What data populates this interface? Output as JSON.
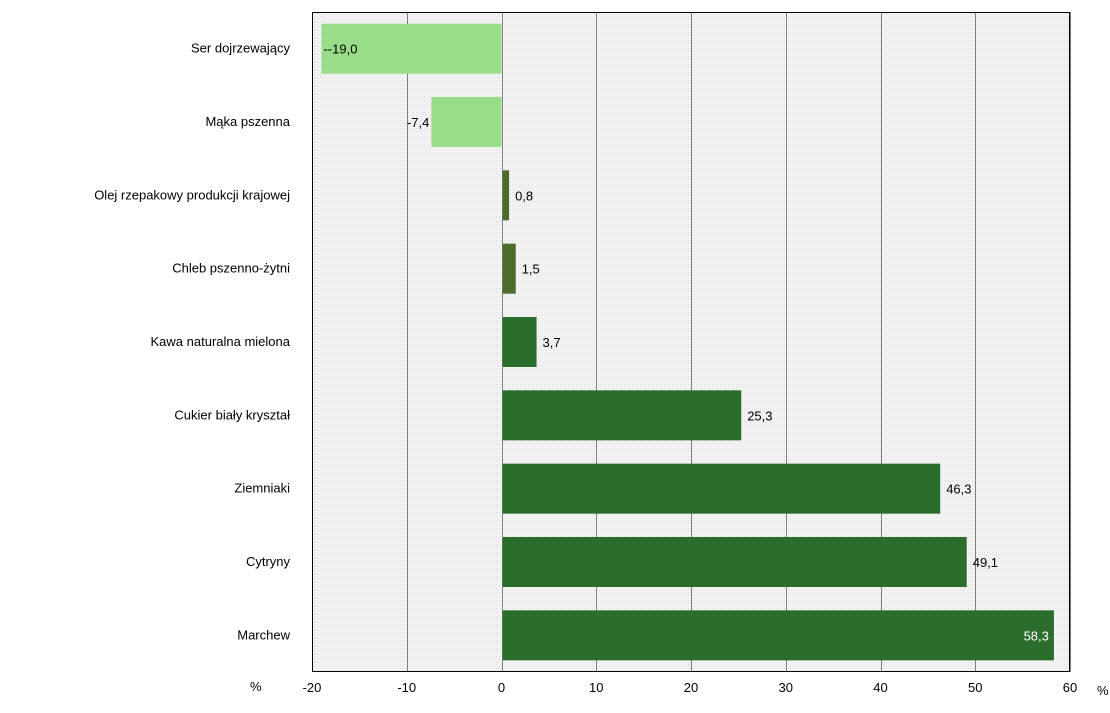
{
  "chart_data": {
    "type": "bar",
    "orientation": "horizontal",
    "categories": [
      "Ser dojrzewający",
      "Mąka pszenna",
      "Olej rzepakowy produkcji krajowej",
      "Chleb pszenno-żytni",
      "Kawa naturalna mielona",
      "Cukier biały kryształ",
      "Ziemniaki",
      "Cytryny",
      "Marchew"
    ],
    "values": [
      -19.0,
      -7.4,
      0.8,
      1.5,
      3.7,
      25.3,
      46.3,
      49.1,
      58.3
    ],
    "data_labels": [
      "--19,0",
      "-7,4",
      "0,8",
      "1,5",
      "3,7",
      "25,3",
      "46,3",
      "49,1",
      "58,3"
    ],
    "bar_colors": [
      "#99dd88",
      "#99dd88",
      "#4d6b2b",
      "#4d6b2b",
      "#2b6e2b",
      "#2b6e2b",
      "#2b6e2b",
      "#2b6e2b",
      "#2b6e2b"
    ],
    "xlim": [
      -20,
      60
    ],
    "xticks": [
      -20,
      -10,
      0,
      10,
      20,
      30,
      40,
      50,
      60
    ],
    "xtick_labels": [
      "-20",
      "-10",
      "0",
      "10",
      "20",
      "30",
      "40",
      "50",
      "60"
    ],
    "xlabel": "%",
    "xlabel_left": "%",
    "grid": "vertical",
    "plot_background": "#f2f2f2",
    "grid_color": "#808080"
  }
}
